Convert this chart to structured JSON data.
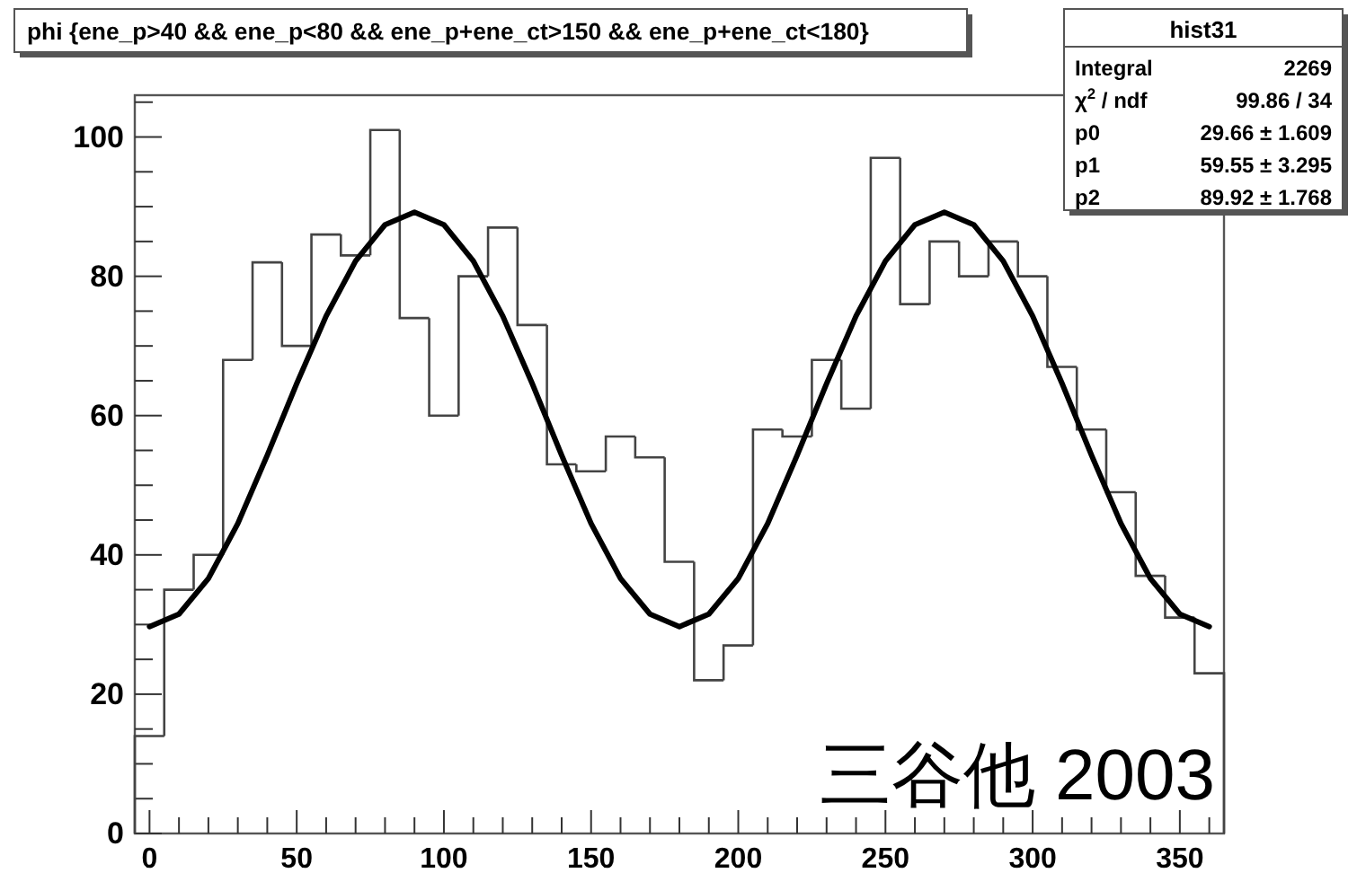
{
  "chart_data": {
    "type": "histogram",
    "title": "phi {ene_p>40 && ene_p<80 && ene_p+ene_ct>150 && ene_p+ene_ct<180}",
    "xlim": [
      -5,
      365
    ],
    "ylim": [
      0,
      106
    ],
    "xticks": [
      0,
      {
        "value": 10,
        "label": null
      },
      {
        "value": 20,
        "label": null
      },
      {
        "value": 30,
        "label": null
      },
      {
        "value": 40,
        "label": null
      },
      50,
      {
        "value": 60,
        "label": null
      },
      {
        "value": 70,
        "label": null
      },
      {
        "value": 80,
        "label": null
      },
      {
        "value": 90,
        "label": null
      },
      100,
      {
        "value": 110,
        "label": null
      },
      {
        "value": 120,
        "label": null
      },
      {
        "value": 130,
        "label": null
      },
      {
        "value": 140,
        "label": null
      },
      150,
      {
        "value": 160,
        "label": null
      },
      {
        "value": 170,
        "label": null
      },
      {
        "value": 180,
        "label": null
      },
      {
        "value": 190,
        "label": null
      },
      200,
      {
        "value": 210,
        "label": null
      },
      {
        "value": 220,
        "label": null
      },
      {
        "value": 230,
        "label": null
      },
      {
        "value": 240,
        "label": null
      },
      250,
      {
        "value": 260,
        "label": null
      },
      {
        "value": 270,
        "label": null
      },
      {
        "value": 280,
        "label": null
      },
      {
        "value": 290,
        "label": null
      },
      300,
      {
        "value": 310,
        "label": null
      },
      {
        "value": 320,
        "label": null
      },
      {
        "value": 330,
        "label": null
      },
      {
        "value": 340,
        "label": null
      },
      350,
      {
        "value": 360,
        "label": null
      }
    ],
    "yticks": [
      0,
      {
        "value": 5,
        "label": null
      },
      {
        "value": 10,
        "label": null
      },
      {
        "value": 15,
        "label": null
      },
      20,
      {
        "value": 25,
        "label": null
      },
      {
        "value": 30,
        "label": null
      },
      {
        "value": 35,
        "label": null
      },
      40,
      {
        "value": 45,
        "label": null
      },
      {
        "value": 50,
        "label": null
      },
      {
        "value": 55,
        "label": null
      },
      60,
      {
        "value": 65,
        "label": null
      },
      {
        "value": 70,
        "label": null
      },
      {
        "value": 75,
        "label": null
      },
      80,
      {
        "value": 85,
        "label": null
      },
      {
        "value": 90,
        "label": null
      },
      {
        "value": 95,
        "label": null
      },
      100,
      {
        "value": 105,
        "label": null
      }
    ],
    "grid": false,
    "series": [
      {
        "type": "histogram",
        "color": "#444444",
        "bins": [
          -5,
          5,
          15,
          25,
          35,
          45,
          55,
          65,
          75,
          85,
          95,
          105,
          115,
          125,
          135,
          145,
          155,
          165,
          175,
          185,
          195,
          205,
          215,
          225,
          235,
          245,
          255,
          265,
          275,
          285,
          295,
          305,
          315,
          325,
          335,
          345,
          355,
          365
        ],
        "values": [
          14,
          35,
          40,
          68,
          82,
          70,
          86,
          83,
          101,
          74,
          60,
          80,
          87,
          73,
          53,
          52,
          57,
          54,
          39,
          22,
          27,
          58,
          57,
          68,
          61,
          97,
          76,
          85,
          80,
          85,
          80,
          67,
          58,
          49,
          37,
          31,
          23
        ]
      },
      {
        "type": "line",
        "color": "#000000",
        "x": [
          0,
          10,
          20,
          30,
          40,
          50,
          60,
          70,
          80,
          90,
          100,
          110,
          120,
          130,
          140,
          150,
          160,
          170,
          180,
          190,
          200,
          210,
          220,
          230,
          240,
          250,
          260,
          270,
          280,
          290,
          300,
          310,
          320,
          330,
          340,
          350,
          360
        ],
        "values": [
          29.7,
          31.5,
          36.6,
          44.5,
          54.3,
          64.6,
          74.3,
          82.2,
          87.4,
          89.2,
          87.4,
          82.2,
          74.3,
          64.6,
          54.3,
          44.5,
          36.6,
          31.5,
          29.7,
          31.5,
          36.6,
          44.5,
          54.3,
          64.6,
          74.3,
          82.2,
          87.4,
          89.2,
          87.4,
          82.2,
          74.3,
          64.6,
          54.3,
          44.5,
          36.6,
          31.5,
          29.7
        ]
      }
    ],
    "annotations": [
      "hist31",
      "Integral",
      "2269",
      "χ$^{2}$ / ndf",
      "99.86 / 34",
      "p0",
      "29.66 ± 1.609",
      "p1",
      "59.55 ± 3.295",
      "p2",
      "89.92 ± 1.768",
      "三谷他 2003"
    ]
  }
}
